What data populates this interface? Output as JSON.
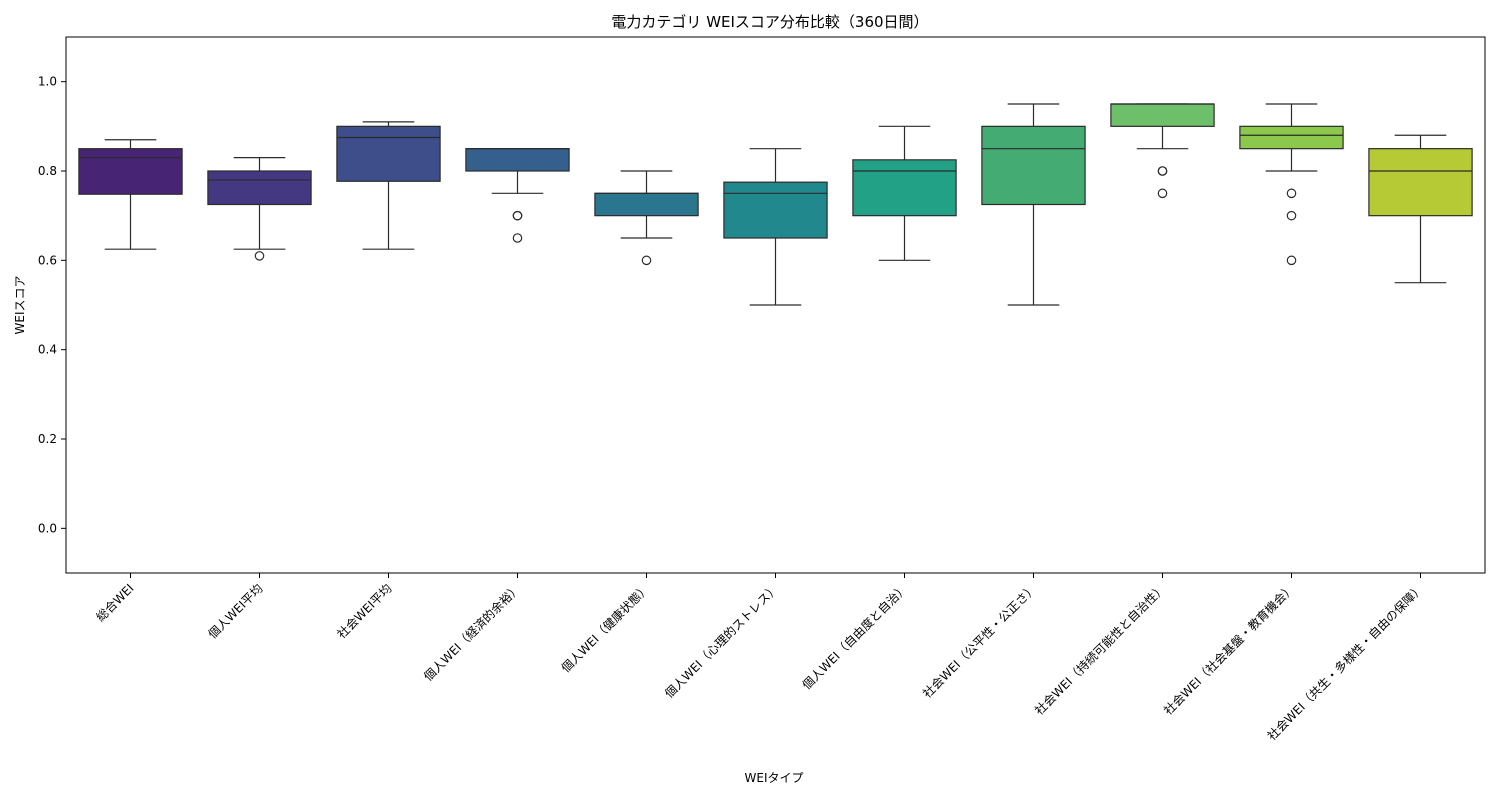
{
  "chart_data": {
    "type": "boxplot",
    "title": "電力カテゴリ WEIスコア分布比較（360日間）",
    "xlabel": "WEIタイプ",
    "ylabel": "WEIスコア",
    "ylim": [
      -0.1,
      1.1
    ],
    "yticks": [
      0.0,
      0.2,
      0.4,
      0.6,
      0.8,
      1.0
    ],
    "ytick_labels": [
      "0.0",
      "0.2",
      "0.4",
      "0.6",
      "0.8",
      "1.0"
    ],
    "grid": false,
    "categories": [
      "総合WEI",
      "個人WEI平均",
      "社会WEI平均",
      "個人WEI（経済的余裕）",
      "個人WEI（健康状態）",
      "個人WEI（心理的ストレス）",
      "個人WEI（自由度と自治）",
      "社会WEI（公平性・公正さ）",
      "社会WEI（持続可能性と自治性）",
      "社会WEI（社会基盤・教育機会）",
      "社会WEI（共生・多様性・自由の保障）"
    ],
    "boxes": [
      {
        "whisker_low": 0.625,
        "q1": 0.748,
        "median": 0.83,
        "q3": 0.85,
        "whisker_high": 0.87,
        "outliers": [],
        "color": "#482475"
      },
      {
        "whisker_low": 0.625,
        "q1": 0.725,
        "median": 0.78,
        "q3": 0.8,
        "whisker_high": 0.83,
        "outliers": [
          0.61
        ],
        "color": "#453882"
      },
      {
        "whisker_low": 0.625,
        "q1": 0.777,
        "median": 0.875,
        "q3": 0.9,
        "whisker_high": 0.91,
        "outliers": [],
        "color": "#3d4e8a"
      },
      {
        "whisker_low": 0.75,
        "q1": 0.8,
        "median": 0.85,
        "q3": 0.85,
        "whisker_high": 0.85,
        "outliers": [
          0.7,
          0.7,
          0.65
        ],
        "color": "#35608d"
      },
      {
        "whisker_low": 0.65,
        "q1": 0.7,
        "median": 0.75,
        "q3": 0.75,
        "whisker_high": 0.8,
        "outliers": [
          0.6
        ],
        "color": "#2a768e"
      },
      {
        "whisker_low": 0.5,
        "q1": 0.65,
        "median": 0.75,
        "q3": 0.775,
        "whisker_high": 0.85,
        "outliers": [],
        "color": "#21898d"
      },
      {
        "whisker_low": 0.6,
        "q1": 0.7,
        "median": 0.8,
        "q3": 0.825,
        "whisker_high": 0.9,
        "outliers": [],
        "color": "#22a187"
      },
      {
        "whisker_low": 0.5,
        "q1": 0.725,
        "median": 0.85,
        "q3": 0.9,
        "whisker_high": 0.95,
        "outliers": [],
        "color": "#44ab72"
      },
      {
        "whisker_low": 0.85,
        "q1": 0.9,
        "median": 0.95,
        "q3": 0.95,
        "whisker_high": 0.95,
        "outliers": [
          0.8,
          0.8,
          0.75
        ],
        "color": "#6ebf6a"
      },
      {
        "whisker_low": 0.8,
        "q1": 0.85,
        "median": 0.88,
        "q3": 0.9,
        "whisker_high": 0.95,
        "outliers": [
          0.75,
          0.7,
          0.6
        ],
        "color": "#8cc84c"
      },
      {
        "whisker_low": 0.55,
        "q1": 0.7,
        "median": 0.8,
        "q3": 0.85,
        "whisker_high": 0.88,
        "outliers": [],
        "color": "#b6ca35"
      }
    ]
  }
}
